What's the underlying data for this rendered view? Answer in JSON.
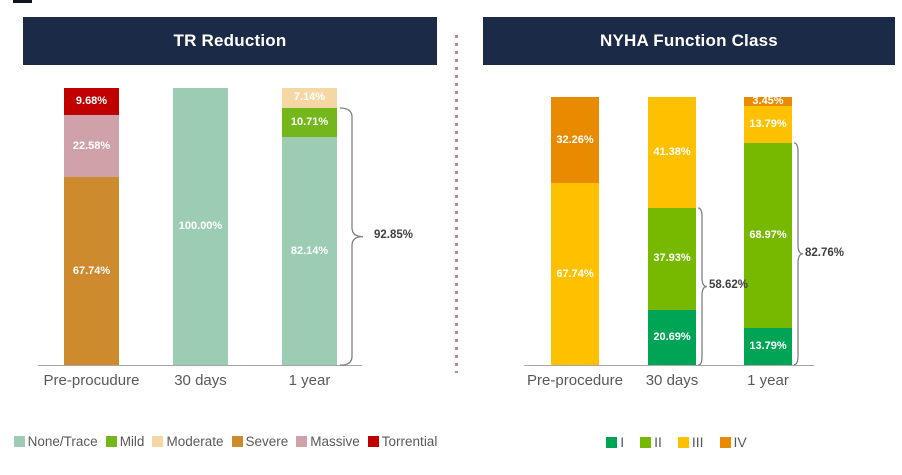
{
  "colors": {
    "title_bar_bg": "#1B2A46",
    "title_text": "#FFFFFF",
    "axis_line": "#A6A6A6",
    "label_text": "#595959",
    "data_label_text": "#FFFFFF",
    "bracket_line": "#7F7F7F",
    "bracket_label_text": "#404040",
    "divider_dot": "#C4868C"
  },
  "divider": {
    "style": "dotted-vertical-line"
  },
  "chart_data": [
    {
      "type": "bar",
      "stacked": true,
      "title": "TR Reduction",
      "categories": [
        "Pre-procudure",
        "30 days",
        "1 year"
      ],
      "series": [
        {
          "name": "None/Trace",
          "color": "#9CCDB3",
          "values": [
            0,
            100,
            82.14
          ]
        },
        {
          "name": "Mild",
          "color": "#74B71B",
          "values": [
            0,
            0,
            10.71
          ]
        },
        {
          "name": "Moderate",
          "color": "#F5D7A4",
          "values": [
            0,
            0,
            7.14
          ]
        },
        {
          "name": "Severe",
          "color": "#CE8B2D",
          "values": [
            67.74,
            0,
            0
          ]
        },
        {
          "name": "Massive",
          "color": "#CFA2A9",
          "values": [
            22.58,
            0,
            0
          ]
        },
        {
          "name": "Torrential",
          "color": "#C00000",
          "values": [
            9.68,
            0,
            0
          ]
        }
      ],
      "data_labels": [
        "9.68%",
        "22.58%",
        "67.74%",
        "100.00%",
        "7.14%",
        "10.71%",
        "82.14%"
      ],
      "ylim": [
        0,
        100
      ],
      "grid": false,
      "legend_position": "bottom",
      "brackets": [
        {
          "label": "92.85%",
          "value": 92.85,
          "category": "1 year",
          "series_covered": [
            "None/Trace",
            "Mild"
          ]
        }
      ]
    },
    {
      "type": "bar",
      "stacked": true,
      "title": "NYHA Function Class",
      "categories": [
        "Pre-procedure",
        "30 days",
        "1 year"
      ],
      "series": [
        {
          "name": "I",
          "color": "#00A455",
          "values": [
            0,
            20.69,
            13.79
          ]
        },
        {
          "name": "II",
          "color": "#76B900",
          "values": [
            0,
            37.93,
            68.97
          ]
        },
        {
          "name": "III",
          "color": "#FFC000",
          "values": [
            67.74,
            41.38,
            13.79
          ]
        },
        {
          "name": "IV",
          "color": "#E98B00",
          "values": [
            32.26,
            0,
            3.45
          ]
        }
      ],
      "data_labels": [
        "32.26%",
        "67.74%",
        "41.38%",
        "37.93%",
        "20.69%",
        "3.45%",
        "13.79%",
        "68.97%",
        "13.79%"
      ],
      "ylim": [
        0,
        100
      ],
      "grid": false,
      "legend_position": "bottom",
      "brackets": [
        {
          "label": "58.62%",
          "value": 58.62,
          "category": "30 days",
          "series_covered": [
            "I",
            "II"
          ]
        },
        {
          "label": "82.76%",
          "value": 82.76,
          "category": "1 year",
          "series_covered": [
            "I",
            "II"
          ]
        }
      ]
    }
  ]
}
